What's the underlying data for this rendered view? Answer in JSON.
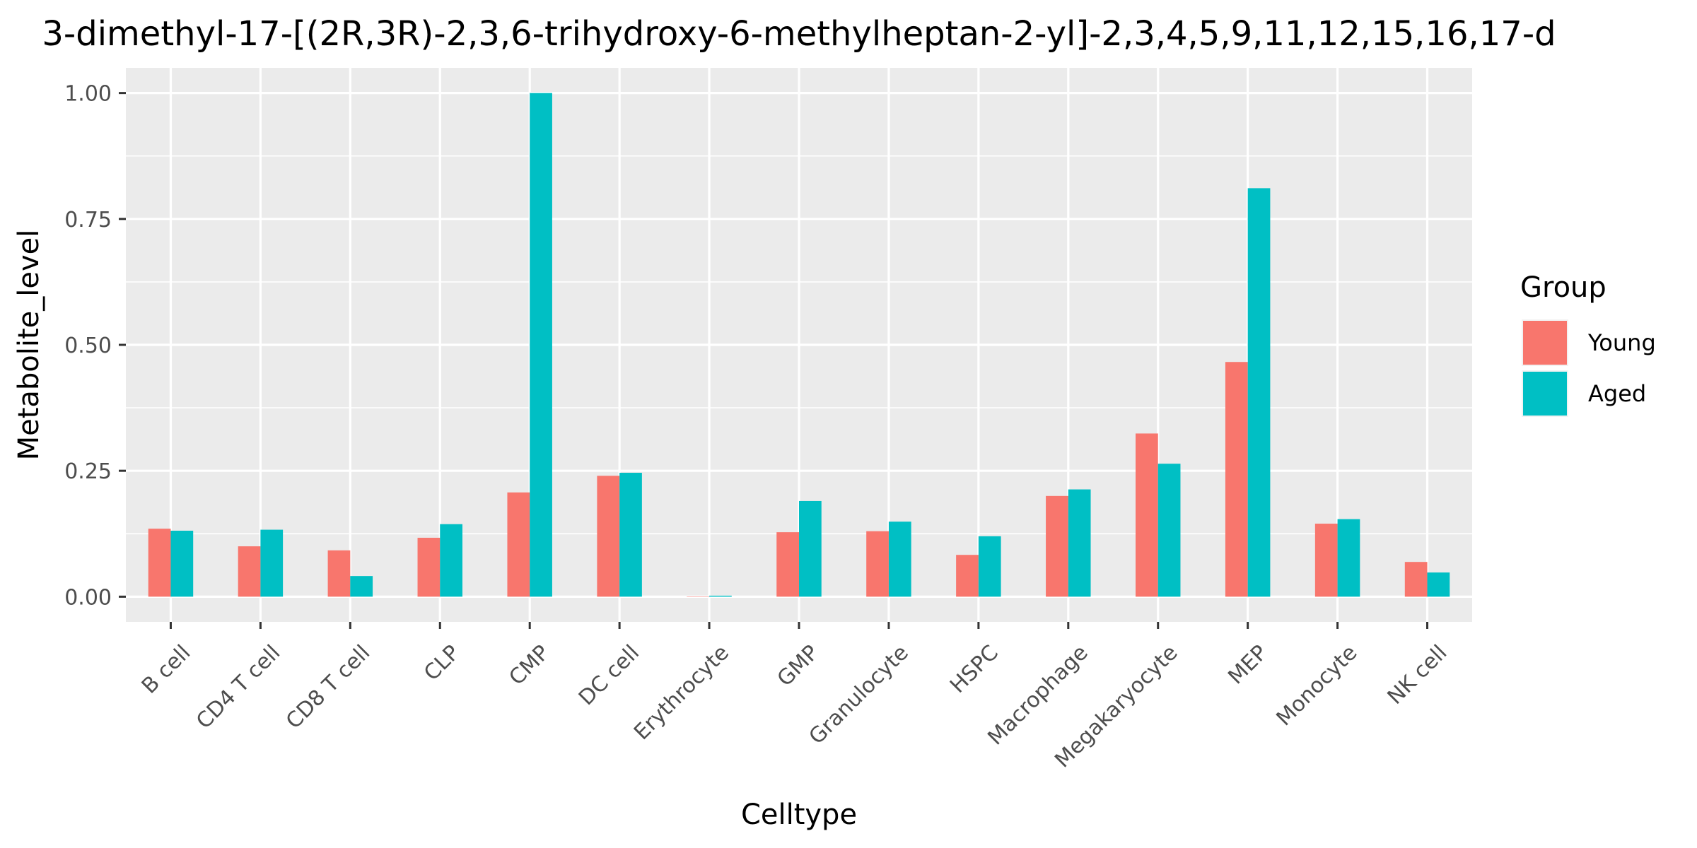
{
  "chart_data": {
    "type": "bar",
    "title": "3-dimethyl-17-[(2R,3R)-2,3,6-trihydroxy-6-methylheptan-2-yl]-2,3,4,5,9,11,12,15,16,17-d",
    "xlabel": "Celltype",
    "ylabel": "Metabolite_level",
    "ylim": [
      -0.05,
      1.05
    ],
    "yticks": [
      0.0,
      0.25,
      0.5,
      0.75,
      1.0
    ],
    "ytick_labels": [
      "0.00",
      "0.25",
      "0.50",
      "0.75",
      "1.00"
    ],
    "grid": true,
    "legend_position": "right",
    "legend_title": "Group",
    "categories": [
      "B cell",
      "CD4 T cell",
      "CD8 T cell",
      "CLP",
      "CMP",
      "DC cell",
      "Erythrocyte",
      "GMP",
      "Granulocyte",
      "HSPC",
      "Macrophage",
      "Megakaryocyte",
      "MEP",
      "Monocyte",
      "NK cell"
    ],
    "series": [
      {
        "name": "Young",
        "color": "#F8766D",
        "values": [
          0.135,
          0.1,
          0.092,
          0.117,
          0.207,
          0.24,
          0.0,
          0.128,
          0.13,
          0.083,
          0.2,
          0.324,
          0.466,
          0.145,
          0.069
        ]
      },
      {
        "name": "Aged",
        "color": "#00BFC4",
        "values": [
          0.131,
          0.133,
          0.041,
          0.144,
          1.0,
          0.246,
          0.002,
          0.19,
          0.149,
          0.12,
          0.213,
          0.264,
          0.811,
          0.154,
          0.048
        ]
      }
    ]
  }
}
